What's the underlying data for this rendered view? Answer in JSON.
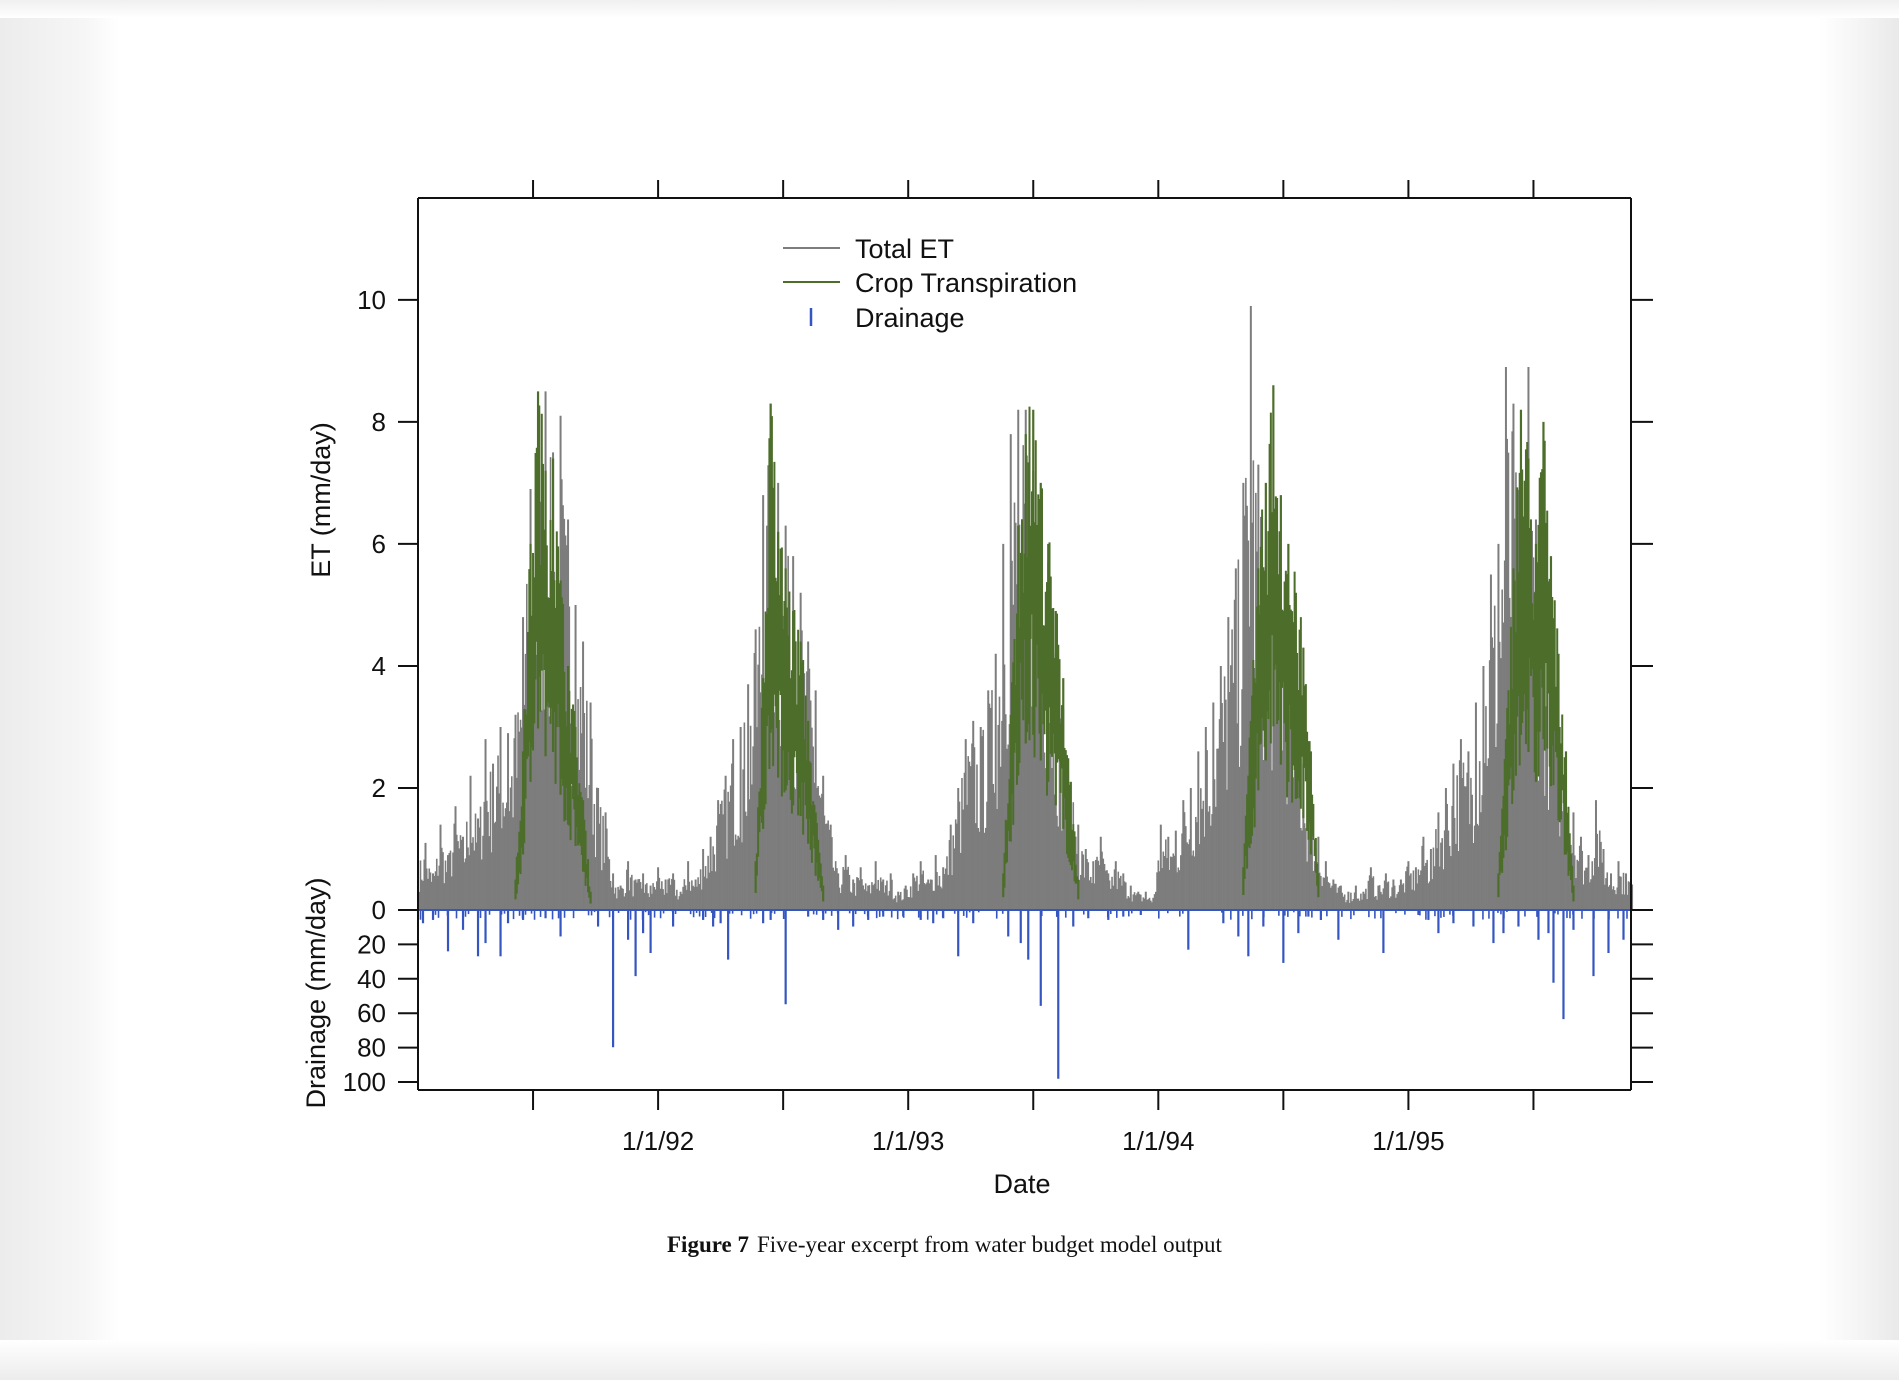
{
  "caption": {
    "label": "Figure 7",
    "text": "Five-year excerpt from water budget model output"
  },
  "colors": {
    "total_et": "#7d7d7d",
    "crop_transpiration": "#4d6e2b",
    "drainage": "#3556c0",
    "axis": "#111111"
  },
  "chart_data": {
    "type": "line",
    "title": "",
    "xlabel": "Date",
    "ylabel_top": "ET (mm/day)",
    "ylabel_bottom": "Drainage (mm/day)",
    "x_range": [
      1991.04,
      1995.89
    ],
    "x_ticks": [
      {
        "value": 1992.0,
        "label": "1/1/92"
      },
      {
        "value": 1993.0,
        "label": "1/1/93"
      },
      {
        "value": 1994.0,
        "label": "1/1/94"
      },
      {
        "value": 1995.0,
        "label": "1/1/95"
      }
    ],
    "x_minor_ticks": [
      1991.5,
      1992.5,
      1993.5,
      1994.5,
      1995.5
    ],
    "et_axis": {
      "range": [
        0,
        11.67
      ],
      "ticks": [
        "0",
        "2",
        "4",
        "6",
        "8",
        "10"
      ],
      "tick_values": [
        0,
        2,
        4,
        6,
        8,
        10
      ]
    },
    "drainage_axis": {
      "range": [
        0,
        104
      ],
      "inverted": true,
      "ticks": [
        "0",
        "20",
        "40",
        "60",
        "80",
        "100"
      ],
      "tick_values": [
        0,
        20,
        40,
        60,
        80,
        100
      ]
    },
    "legend": {
      "position": "top-center",
      "entries": [
        "Total ET",
        "Crop Transpiration",
        "Drainage"
      ]
    },
    "grid": false,
    "series": [
      {
        "name": "Total ET",
        "x": [
          1991.04,
          1991.07,
          1991.1,
          1991.13,
          1991.16,
          1991.19,
          1991.22,
          1991.25,
          1991.28,
          1991.31,
          1991.34,
          1991.37,
          1991.4,
          1991.43,
          1991.46,
          1991.49,
          1991.52,
          1991.55,
          1991.58,
          1991.61,
          1991.64,
          1991.67,
          1991.7,
          1991.73,
          1991.76,
          1991.79,
          1991.82,
          1991.85,
          1991.88,
          1991.91,
          1991.94,
          1991.97,
          1992.0,
          1992.03,
          1992.06,
          1992.09,
          1992.12,
          1992.15,
          1992.18,
          1992.21,
          1992.24,
          1992.27,
          1992.3,
          1992.33,
          1992.36,
          1992.39,
          1992.42,
          1992.45,
          1992.48,
          1992.51,
          1992.54,
          1992.57,
          1992.6,
          1992.63,
          1992.66,
          1992.69,
          1992.72,
          1992.75,
          1992.78,
          1992.81,
          1992.84,
          1992.87,
          1992.9,
          1992.93,
          1992.96,
          1992.99,
          1993.02,
          1993.05,
          1993.08,
          1993.11,
          1993.14,
          1993.17,
          1993.2,
          1993.23,
          1993.26,
          1993.29,
          1993.32,
          1993.35,
          1993.38,
          1993.41,
          1993.44,
          1993.47,
          1993.5,
          1993.53,
          1993.56,
          1993.59,
          1993.62,
          1993.65,
          1993.68,
          1993.71,
          1993.74,
          1993.77,
          1993.8,
          1993.83,
          1993.86,
          1993.89,
          1993.92,
          1993.95,
          1993.98,
          1994.01,
          1994.04,
          1994.07,
          1994.1,
          1994.13,
          1994.16,
          1994.19,
          1994.22,
          1994.25,
          1994.28,
          1994.31,
          1994.34,
          1994.37,
          1994.4,
          1994.43,
          1994.46,
          1994.49,
          1994.52,
          1994.55,
          1994.58,
          1994.61,
          1994.64,
          1994.67,
          1994.7,
          1994.73,
          1994.76,
          1994.79,
          1994.82,
          1994.85,
          1994.88,
          1994.91,
          1994.94,
          1994.97,
          1995.0,
          1995.03,
          1995.06,
          1995.09,
          1995.12,
          1995.15,
          1995.18,
          1995.21,
          1995.24,
          1995.27,
          1995.3,
          1995.33,
          1995.36,
          1995.39,
          1995.42,
          1995.45,
          1995.48,
          1995.51,
          1995.54,
          1995.57,
          1995.6,
          1995.63,
          1995.66,
          1995.69,
          1995.72,
          1995.75,
          1995.78,
          1995.81,
          1995.84,
          1995.87
        ],
        "values": [
          0.8,
          1.1,
          0.6,
          1.4,
          0.9,
          1.7,
          1.2,
          2.2,
          1.5,
          2.8,
          2.4,
          3.0,
          2.9,
          3.2,
          4.8,
          6.9,
          7.2,
          8.5,
          7.5,
          8.1,
          6.4,
          5.0,
          4.4,
          3.4,
          2.0,
          1.6,
          0.6,
          0.4,
          0.8,
          0.5,
          0.6,
          0.4,
          0.7,
          0.5,
          0.6,
          0.3,
          0.8,
          0.5,
          1.0,
          1.2,
          1.8,
          2.2,
          2.8,
          3.0,
          3.7,
          4.6,
          6.8,
          8.3,
          7.0,
          6.3,
          5.8,
          5.2,
          4.4,
          3.6,
          2.2,
          1.4,
          0.6,
          0.9,
          0.5,
          0.7,
          0.4,
          0.8,
          0.5,
          0.6,
          0.3,
          0.4,
          0.6,
          0.8,
          0.5,
          0.9,
          0.7,
          1.4,
          2.0,
          2.8,
          3.1,
          3.0,
          3.6,
          4.2,
          6.0,
          7.8,
          8.2,
          8.2,
          7.2,
          6.5,
          5.7,
          4.2,
          3.3,
          2.1,
          1.4,
          1.0,
          0.8,
          1.2,
          0.6,
          0.8,
          0.6,
          0.4,
          0.3,
          0.3,
          0.2,
          1.4,
          1.2,
          1.3,
          1.8,
          2.0,
          2.6,
          3.0,
          3.4,
          4.0,
          4.8,
          5.6,
          7.0,
          9.9,
          7.3,
          6.4,
          6.0,
          5.6,
          4.6,
          3.8,
          2.4,
          1.8,
          1.2,
          0.8,
          0.5,
          0.4,
          0.3,
          0.4,
          0.3,
          0.7,
          0.4,
          0.6,
          0.5,
          0.5,
          0.8,
          0.7,
          1.2,
          1.0,
          1.6,
          2.0,
          2.4,
          2.8,
          2.6,
          3.4,
          4.0,
          5.5,
          6.0,
          8.9,
          8.3,
          7.0,
          8.9,
          6.4,
          5.2,
          4.3,
          3.3,
          2.4,
          1.6,
          1.2,
          0.9,
          1.8,
          1.0,
          0.6,
          0.8,
          0.6
        ]
      },
      {
        "name": "Crop Transpiration",
        "x": [
          1991.43,
          1991.46,
          1991.49,
          1991.52,
          1991.55,
          1991.58,
          1991.61,
          1991.64,
          1991.67,
          1991.7,
          1991.73,
          1992.39,
          1992.42,
          1992.45,
          1992.48,
          1992.51,
          1992.54,
          1992.57,
          1992.6,
          1992.63,
          1992.66,
          1993.38,
          1993.41,
          1993.44,
          1993.47,
          1993.5,
          1993.53,
          1993.56,
          1993.59,
          1993.62,
          1993.65,
          1993.68,
          1994.34,
          1994.37,
          1994.4,
          1994.43,
          1994.46,
          1994.49,
          1994.52,
          1994.55,
          1994.58,
          1994.61,
          1994.64,
          1995.36,
          1995.39,
          1995.42,
          1995.45,
          1995.48,
          1995.51,
          1995.54,
          1995.57,
          1995.6,
          1995.63,
          1995.66
        ],
        "values": [
          0.5,
          2.6,
          6.0,
          8.5,
          7.2,
          7.4,
          5.4,
          4.0,
          3.0,
          1.8,
          0.3,
          0.8,
          3.8,
          8.3,
          6.2,
          5.6,
          4.9,
          4.4,
          3.1,
          1.6,
          0.4,
          0.6,
          3.2,
          6.3,
          7.8,
          8.2,
          7.0,
          6.0,
          4.9,
          3.8,
          2.1,
          0.5,
          0.7,
          3.1,
          5.6,
          7.0,
          8.6,
          6.8,
          6.0,
          5.2,
          4.3,
          2.6,
          0.6,
          0.6,
          2.8,
          5.6,
          8.2,
          7.4,
          6.0,
          8.0,
          5.8,
          4.2,
          2.6,
          0.4
        ]
      },
      {
        "name": "Drainage",
        "x": [
          1991.06,
          1991.1,
          1991.16,
          1991.22,
          1991.28,
          1991.31,
          1991.37,
          1991.4,
          1991.46,
          1991.55,
          1991.61,
          1991.76,
          1991.82,
          1991.88,
          1991.91,
          1991.94,
          1991.97,
          1992.06,
          1992.18,
          1992.22,
          1992.25,
          1992.28,
          1992.42,
          1992.45,
          1992.51,
          1992.6,
          1992.66,
          1992.72,
          1992.78,
          1992.84,
          1992.9,
          1992.98,
          1993.05,
          1993.1,
          1993.14,
          1993.2,
          1993.26,
          1993.4,
          1993.45,
          1993.48,
          1993.53,
          1993.6,
          1993.66,
          1993.72,
          1993.8,
          1993.86,
          1993.93,
          1994.12,
          1994.26,
          1994.32,
          1994.36,
          1994.42,
          1994.5,
          1994.56,
          1994.6,
          1994.65,
          1994.72,
          1994.9,
          1995.04,
          1995.08,
          1995.12,
          1995.18,
          1995.26,
          1995.34,
          1995.38,
          1995.44,
          1995.52,
          1995.56,
          1995.58,
          1995.62,
          1995.66,
          1995.74,
          1995.8,
          1995.86
        ],
        "values": [
          8,
          6,
          25,
          12,
          28,
          20,
          28,
          8,
          6,
          5,
          16,
          10,
          83,
          18,
          40,
          14,
          26,
          10,
          6,
          10,
          8,
          30,
          8,
          6,
          57,
          4,
          6,
          12,
          10,
          6,
          4,
          4,
          6,
          8,
          5,
          28,
          8,
          16,
          20,
          30,
          58,
          102,
          10,
          5,
          6,
          4,
          3,
          24,
          8,
          16,
          28,
          10,
          32,
          14,
          4,
          6,
          18,
          26,
          3,
          6,
          14,
          8,
          10,
          20,
          14,
          10,
          18,
          14,
          44,
          66,
          12,
          40,
          26,
          18
        ]
      }
    ]
  }
}
